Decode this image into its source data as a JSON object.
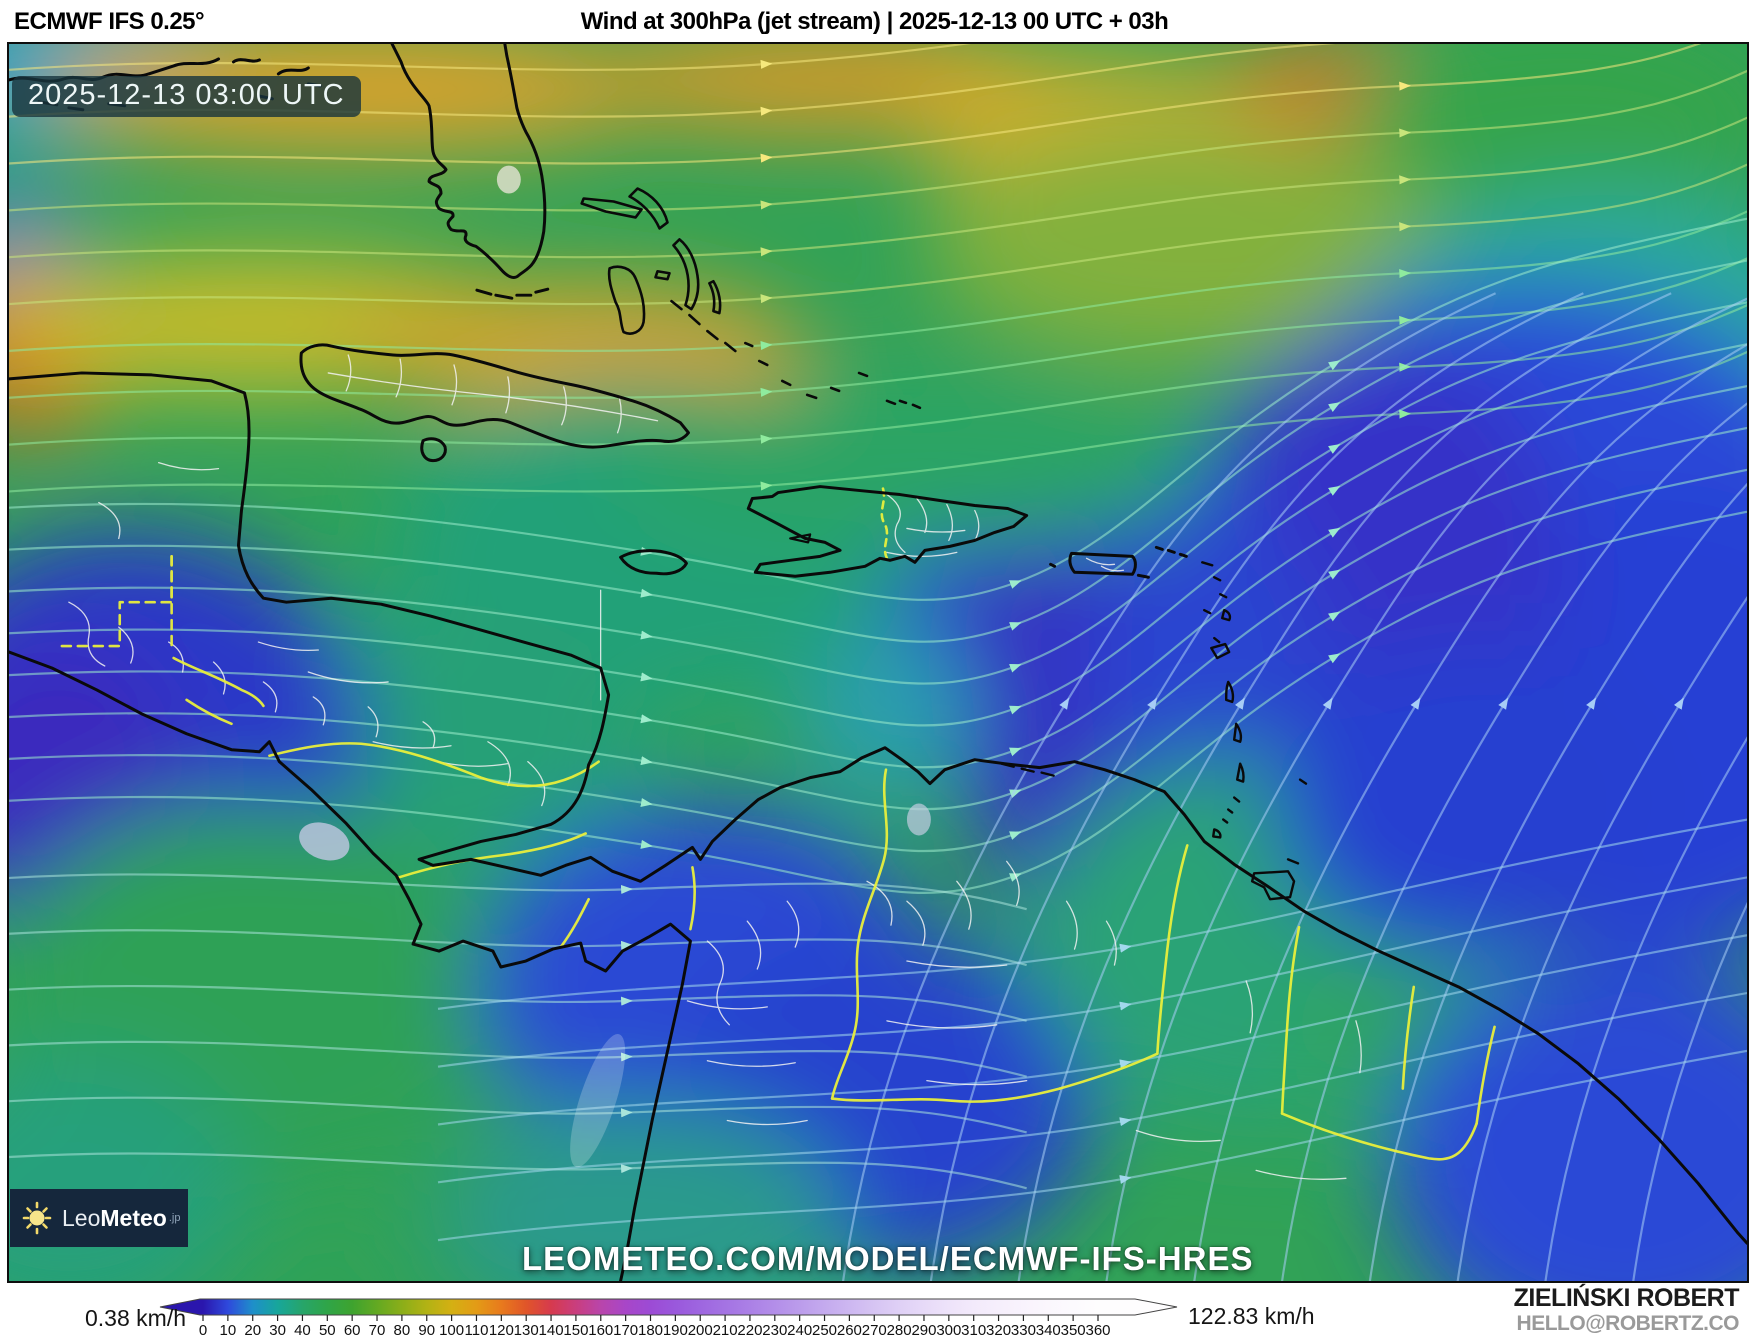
{
  "header": {
    "model": "ECMWF IFS 0.25°",
    "title": "Wind at 300hPa (jet stream) | 2025-12-13 00 UTC + 03h"
  },
  "map": {
    "timestamp": "2025-12-13 03:00 UTC",
    "watermark": "LEOMETEO.COM/MODEL/ECMWF-IFS-HRES",
    "region": "Caribbean / Gulf of Mexico / Northern South America"
  },
  "logo": {
    "name_light": "Leo",
    "name_bold": "Meteo",
    "suffix": ".jp"
  },
  "footer": {
    "min_label": "0.38 km/h",
    "max_label": "122.83 km/h",
    "credit_name": "ZIELIŃSKI ROBERT",
    "credit_email": "HELLO@ROBERTZ.CO"
  },
  "colorbar": {
    "unit": "km/h",
    "ticks": [
      0,
      10,
      20,
      30,
      40,
      50,
      60,
      70,
      80,
      90,
      100,
      110,
      120,
      130,
      140,
      150,
      160,
      170,
      180,
      190,
      200,
      210,
      220,
      230,
      240,
      250,
      260,
      270,
      280,
      290,
      300,
      310,
      320,
      330,
      340,
      350,
      360
    ],
    "tip_color": "#190c7e",
    "stops": [
      [
        0,
        "#2a16ad"
      ],
      [
        10,
        "#2f49dc"
      ],
      [
        20,
        "#1e8fca"
      ],
      [
        30,
        "#17a69b"
      ],
      [
        40,
        "#27a56a"
      ],
      [
        50,
        "#2fa548"
      ],
      [
        60,
        "#3ea32f"
      ],
      [
        70,
        "#63a922"
      ],
      [
        80,
        "#8bae19"
      ],
      [
        90,
        "#b2b214"
      ],
      [
        100,
        "#d4b013"
      ],
      [
        110,
        "#e39b16"
      ],
      [
        120,
        "#e87a1d"
      ],
      [
        130,
        "#e05529"
      ],
      [
        140,
        "#d63a4e"
      ],
      [
        150,
        "#c93e7e"
      ],
      [
        160,
        "#b945ab"
      ],
      [
        170,
        "#a846c8"
      ],
      [
        180,
        "#9c4bd5"
      ],
      [
        190,
        "#9a58dc"
      ],
      [
        200,
        "#9e66e0"
      ],
      [
        210,
        "#a473e3"
      ],
      [
        220,
        "#ab80e6"
      ],
      [
        230,
        "#b38ee9"
      ],
      [
        240,
        "#bb9ceb"
      ],
      [
        250,
        "#c4aaee"
      ],
      [
        260,
        "#cdb7f1"
      ],
      [
        270,
        "#d6c4f3"
      ],
      [
        280,
        "#dfd0f6"
      ],
      [
        290,
        "#e7daf8"
      ],
      [
        300,
        "#eee3fa"
      ],
      [
        310,
        "#f3eafb"
      ],
      [
        320,
        "#f6effc"
      ],
      [
        330,
        "#f9f3fd"
      ],
      [
        340,
        "#fbf7fd"
      ],
      [
        350,
        "#fcfafe"
      ],
      [
        360,
        "#fefdfe"
      ]
    ]
  }
}
